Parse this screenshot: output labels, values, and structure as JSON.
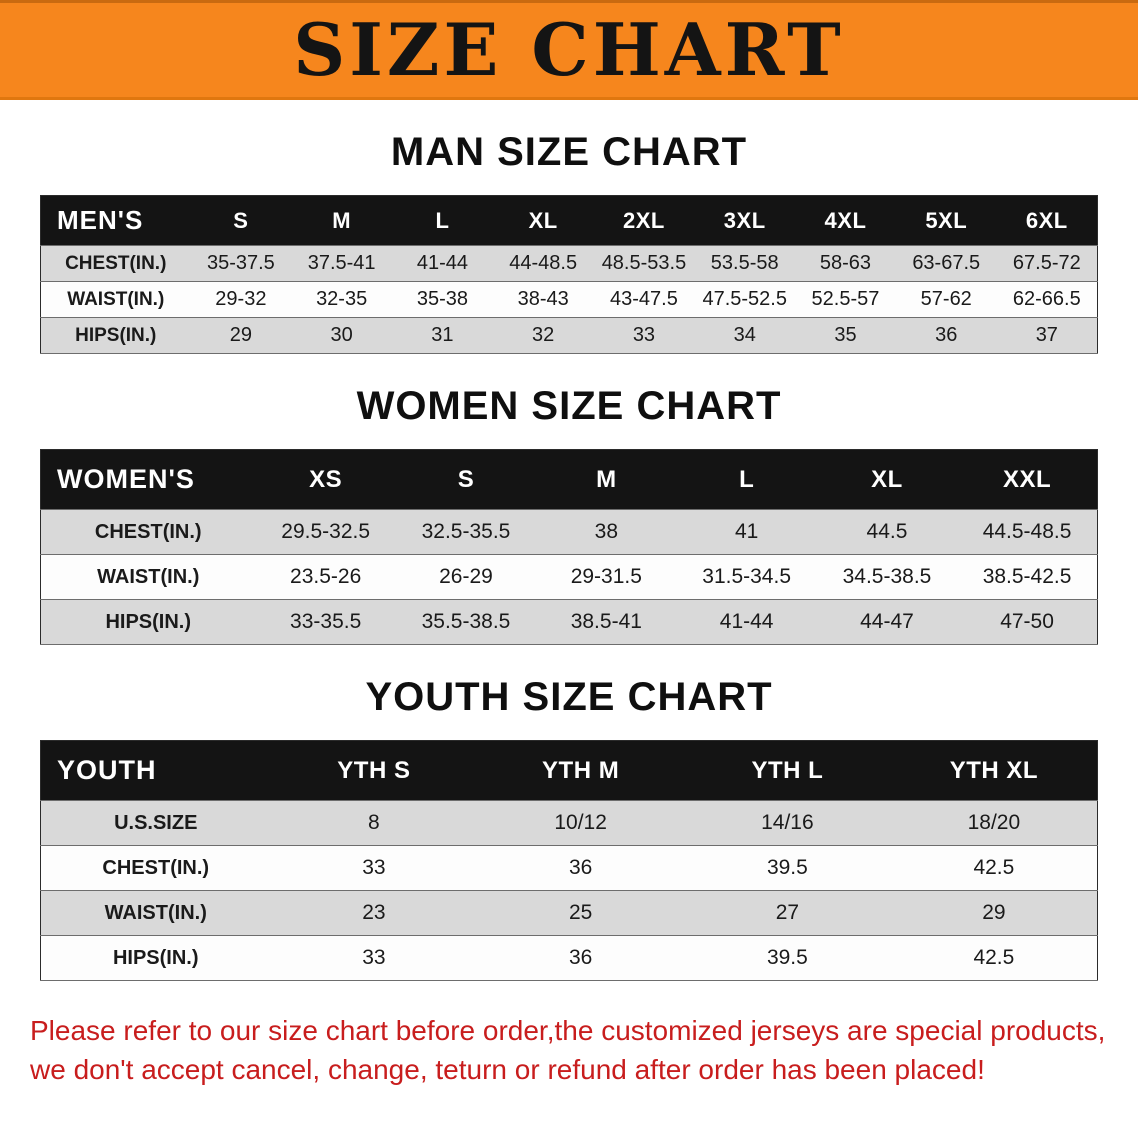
{
  "banner": {
    "title": "SIZE CHART",
    "bg_color": "#f6861d",
    "text_color": "#141414"
  },
  "sections": [
    {
      "heading": "MAN SIZE CHART",
      "table": {
        "header": [
          "MEN'S",
          "S",
          "M",
          "L",
          "XL",
          "2XL",
          "3XL",
          "4XL",
          "5XL",
          "6XL"
        ],
        "rows": [
          [
            "CHEST(IN.)",
            "35-37.5",
            "37.5-41",
            "41-44",
            "44-48.5",
            "48.5-53.5",
            "53.5-58",
            "58-63",
            "63-67.5",
            "67.5-72"
          ],
          [
            "WAIST(IN.)",
            "29-32",
            "32-35",
            "35-38",
            "38-43",
            "43-47.5",
            "47.5-52.5",
            "52.5-57",
            "57-62",
            "62-66.5"
          ],
          [
            "HIPS(IN.)",
            "29",
            "30",
            "31",
            "32",
            "33",
            "34",
            "35",
            "36",
            "37"
          ]
        ]
      }
    },
    {
      "heading": "WOMEN SIZE CHART",
      "table": {
        "header": [
          "WOMEN'S",
          "XS",
          "S",
          "M",
          "L",
          "XL",
          "XXL"
        ],
        "rows": [
          [
            "CHEST(IN.)",
            "29.5-32.5",
            "32.5-35.5",
            "38",
            "41",
            "44.5",
            "44.5-48.5"
          ],
          [
            "WAIST(IN.)",
            "23.5-26",
            "26-29",
            "29-31.5",
            "31.5-34.5",
            "34.5-38.5",
            "38.5-42.5"
          ],
          [
            "HIPS(IN.)",
            "33-35.5",
            "35.5-38.5",
            "38.5-41",
            "41-44",
            "44-47",
            "47-50"
          ]
        ]
      }
    },
    {
      "heading": "YOUTH SIZE CHART",
      "table": {
        "header": [
          "YOUTH",
          "YTH S",
          "YTH M",
          "YTH L",
          "YTH XL"
        ],
        "rows": [
          [
            "U.S.SIZE",
            "8",
            "10/12",
            "14/16",
            "18/20"
          ],
          [
            "CHEST(IN.)",
            "33",
            "36",
            "39.5",
            "42.5"
          ],
          [
            "WAIST(IN.)",
            "23",
            "25",
            "27",
            "29"
          ],
          [
            "HIPS(IN.)",
            "33",
            "36",
            "39.5",
            "42.5"
          ]
        ]
      }
    }
  ],
  "footer": {
    "line1": "Please refer to our size chart before order,the customized jerseys are special products,",
    "line2": "we don't accept cancel, change, teturn or refund after order has been placed!",
    "text_color": "#c81d1d"
  }
}
